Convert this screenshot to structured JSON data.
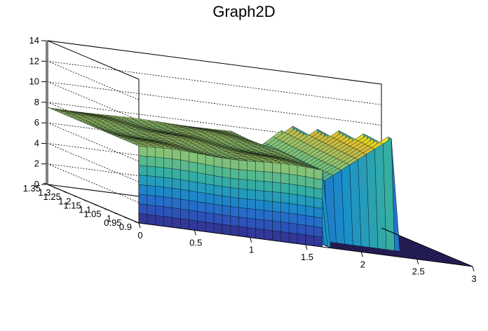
{
  "chart_data": {
    "type": "surface",
    "title": "Graph2D",
    "xlabel": "",
    "ylabel": "",
    "zlabel": "",
    "x_range": [
      0,
      3
    ],
    "y_range": [
      0.9,
      1.35
    ],
    "z_range": [
      0,
      14
    ],
    "x_ticks": [
      "0",
      "0.5",
      "1",
      "1.5",
      "2",
      "2.5",
      "3"
    ],
    "y_ticks": [
      "0.9",
      "0.95",
      "1",
      "1.05",
      "1.1",
      "1.15",
      "1.2",
      "1.25",
      "1.3",
      "1.35"
    ],
    "z_ticks": [
      "0",
      "2",
      "4",
      "6",
      "8",
      "10",
      "12",
      "14"
    ],
    "grid": true,
    "colormap": [
      "#352a87",
      "#2a5fc8",
      "#1a90c8",
      "#3bb39c",
      "#8fc472",
      "#d4bb3a",
      "#f9fb0e"
    ],
    "surface_regions": [
      {
        "name": "plateau",
        "x": [
          0,
          1.65
        ],
        "y": [
          0.9,
          1.35
        ],
        "z": 7.5
      },
      {
        "name": "ridge",
        "x": [
          1.65,
          2.6
        ],
        "y": [
          1.0,
          1.35
        ],
        "z_min": 4,
        "z_peak": 11
      },
      {
        "name": "floor",
        "x": [
          1.65,
          3.0
        ],
        "y": [
          0.9,
          1.35
        ],
        "z": 0
      }
    ]
  }
}
